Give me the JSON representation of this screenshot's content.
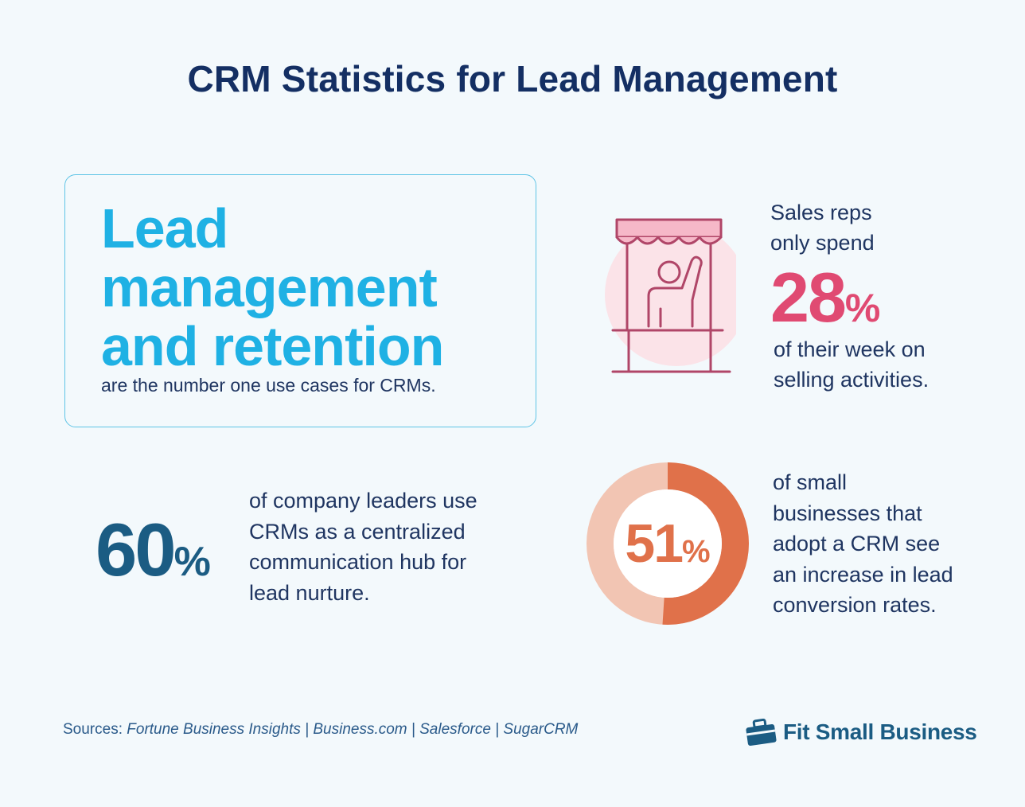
{
  "title": "CRM Statistics for Lead Management",
  "lead_card": {
    "heading": "Lead management and retention",
    "subtext": "are the number one use cases for CRMs."
  },
  "sales_reps": {
    "line1": "Sales reps",
    "line2": "only spend",
    "value": "28",
    "unit": "%",
    "line3": "of their week on",
    "line4": "selling activities.",
    "icon": "market-stand-icon"
  },
  "leaders": {
    "value": "60",
    "unit": "%",
    "line1": "of company leaders use",
    "line2": "CRMs as a centralized",
    "line3": "communication hub for",
    "line4": "lead nurture."
  },
  "small_business": {
    "value": "51",
    "unit": "%",
    "fraction": 0.51,
    "line1": "of small",
    "line2": "businesses that",
    "line3": "adopt a CRM see",
    "line4": "an increase in lead",
    "line5": "conversion rates."
  },
  "sources": {
    "label": "Sources:",
    "list": "Fortune Business Insights | Business.com | Salesforce | SugarCRM"
  },
  "brand": {
    "name": "Fit Small Business",
    "icon": "briefcase-icon"
  },
  "colors": {
    "title": "#142f63",
    "lead": "#1fb1e4",
    "pink": "#e04a72",
    "navy": "#1b5c83",
    "orange": "#e0714a",
    "orange_light": "#f2c5b3"
  }
}
